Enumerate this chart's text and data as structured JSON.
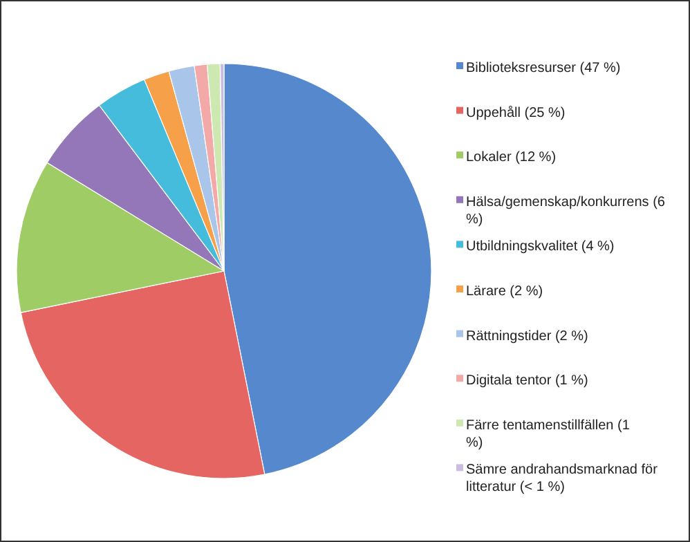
{
  "chart_data": {
    "type": "pie",
    "categories": [
      "Biblioteksresurser (47 %)",
      "Uppehåll (25 %)",
      "Lokaler (12 %)",
      "Hälsa/gemenskap/konkurrens (6 %)",
      "Utbildningskvalitet (4 %)",
      "Lärare (2 %)",
      "Rättningstider (2 %)",
      "Digitala tentor (1 %)",
      "Färre tentamenstillfällen (1 %)",
      "Sämre andrahandsmarknad för litteratur (< 1 %)"
    ],
    "values": [
      47,
      25,
      12,
      6,
      4,
      2,
      2,
      1,
      1,
      0.3
    ],
    "colors": [
      "#5588cc",
      "#e56562",
      "#a0cc66",
      "#9377b8",
      "#45bcdc",
      "#f7a04a",
      "#a9c5ea",
      "#f3a9a7",
      "#cde8b0",
      "#cbbde2"
    ],
    "legend": "right"
  }
}
